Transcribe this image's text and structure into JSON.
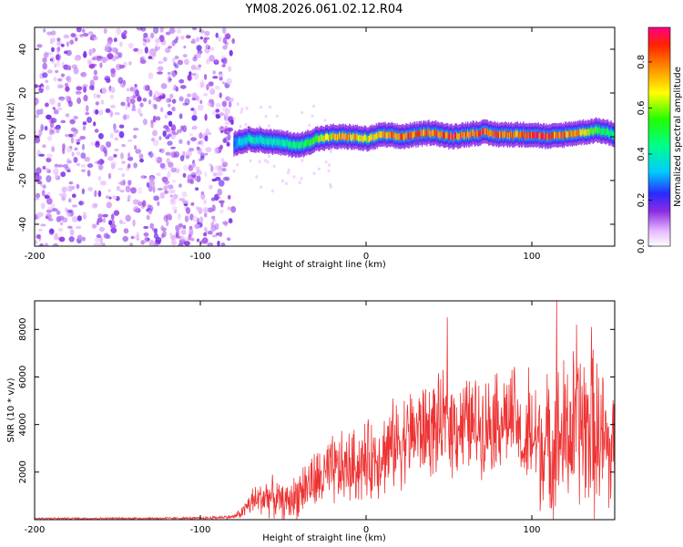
{
  "title": "YM08.2026.061.02.12.R04",
  "chart_data": [
    {
      "type": "heatmap",
      "name": "spectrogram",
      "xlabel": "Height of straight line (km)",
      "ylabel": "Frequency (Hz)",
      "xlim": [
        -200,
        150
      ],
      "ylim": [
        -50,
        50
      ],
      "x_ticks": [
        -200,
        -100,
        0,
        100
      ],
      "y_ticks": [
        -40,
        -20,
        0,
        20,
        40
      ],
      "noise_region_x": [
        -200,
        -80
      ],
      "signal_track": {
        "x": [
          -80,
          -70,
          -60,
          -50,
          -40,
          -30,
          -20,
          -10,
          0,
          10,
          20,
          30,
          40,
          50,
          60,
          70,
          80,
          90,
          100,
          110,
          120,
          130,
          140,
          150
        ],
        "frequency": [
          -3,
          -1,
          -2,
          -3,
          -4,
          -1,
          0,
          0,
          -1,
          1,
          0,
          1,
          2,
          0,
          1,
          2,
          1,
          1,
          1,
          0,
          1,
          2,
          3,
          1
        ],
        "amplitude": [
          0.3,
          0.45,
          0.4,
          0.45,
          0.5,
          0.65,
          0.75,
          0.8,
          0.7,
          0.8,
          0.85,
          0.9,
          0.85,
          0.9,
          0.85,
          0.9,
          0.9,
          0.85,
          0.9,
          0.9,
          0.85,
          0.75,
          0.55,
          0.5
        ]
      },
      "colorbar": {
        "label": "Normalized spectral amplitude",
        "range": [
          0.0,
          0.95
        ],
        "ticks": [
          0.0,
          0.2,
          0.4,
          0.6,
          0.8
        ]
      }
    },
    {
      "type": "line",
      "name": "snr",
      "xlabel": "Height of straight line (km)",
      "ylabel": "SNR (10 * v/v)",
      "xlim": [
        -200,
        150
      ],
      "ylim": [
        0,
        9200
      ],
      "x_ticks": [
        -200,
        -100,
        0,
        100
      ],
      "y_ticks": [
        2000,
        4000,
        6000,
        8000
      ],
      "color": "#ee3333",
      "envelope": {
        "x": [
          -200,
          -100,
          -80,
          -75,
          -70,
          -60,
          -55,
          -50,
          -45,
          -40,
          -35,
          -30,
          -25,
          -20,
          -10,
          0,
          10,
          20,
          30,
          40,
          50,
          60,
          70,
          80,
          90,
          95,
          100,
          110,
          120,
          130,
          140,
          150
        ],
        "mean": [
          50,
          60,
          120,
          300,
          700,
          1000,
          900,
          700,
          800,
          1200,
          1500,
          1600,
          1800,
          2000,
          2200,
          2400,
          2800,
          3300,
          3700,
          3800,
          4000,
          4000,
          4000,
          4200,
          4300,
          2800,
          3500,
          3000,
          3500,
          4000,
          3500,
          2500
        ],
        "spread": [
          30,
          40,
          80,
          200,
          500,
          700,
          700,
          600,
          700,
          900,
          1000,
          1100,
          1200,
          1300,
          1300,
          1400,
          1500,
          1600,
          1700,
          1700,
          1800,
          1700,
          1700,
          1700,
          1800,
          1200,
          2200,
          2500,
          2800,
          3000,
          2800,
          2500
        ]
      },
      "peaks": [
        {
          "x": 49,
          "y": 8500
        },
        {
          "x": 115,
          "y": 9200
        },
        {
          "x": 127,
          "y": 8200
        },
        {
          "x": 136,
          "y": 8100
        },
        {
          "x": 98,
          "y": 6400
        },
        {
          "x": 78,
          "y": 6100
        }
      ]
    }
  ]
}
